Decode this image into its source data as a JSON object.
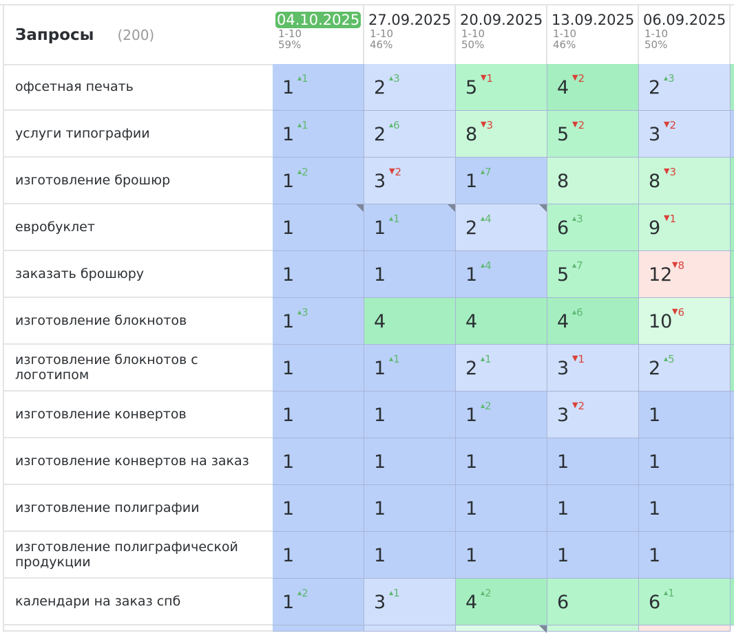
{
  "header": {
    "title": "Запросы",
    "count": "(200)"
  },
  "columns": [
    {
      "date": "04.10.2025",
      "range": "1-10",
      "pct": "59%",
      "active": true
    },
    {
      "date": "27.09.2025",
      "range": "1-10",
      "pct": "46%"
    },
    {
      "date": "20.09.2025",
      "range": "1-10",
      "pct": "50%"
    },
    {
      "date": "13.09.2025",
      "range": "1-10",
      "pct": "46%"
    },
    {
      "date": "06.09.2025",
      "range": "1-10",
      "pct": "50%"
    }
  ],
  "colors": {
    "up": "#5fb870",
    "down": "#d9413a",
    "active_date": "#5fbe67"
  },
  "rows": [
    {
      "query": "офсетная печать",
      "cells": [
        {
          "v": "1",
          "d": "1",
          "dir": "up"
        },
        {
          "v": "2",
          "d": "3",
          "dir": "up"
        },
        {
          "v": "5",
          "d": "1",
          "dir": "down"
        },
        {
          "v": "4",
          "d": "2",
          "dir": "down"
        },
        {
          "v": "2",
          "d": "3",
          "dir": "up"
        }
      ]
    },
    {
      "query": "услуги типографии",
      "cells": [
        {
          "v": "1",
          "d": "1",
          "dir": "up"
        },
        {
          "v": "2",
          "d": "6",
          "dir": "up"
        },
        {
          "v": "8",
          "d": "3",
          "dir": "down"
        },
        {
          "v": "5",
          "d": "2",
          "dir": "down"
        },
        {
          "v": "3",
          "d": "2",
          "dir": "down"
        }
      ]
    },
    {
      "query": "изготовление брошюр",
      "cells": [
        {
          "v": "1",
          "d": "2",
          "dir": "up"
        },
        {
          "v": "3",
          "d": "2",
          "dir": "down"
        },
        {
          "v": "1",
          "d": "7",
          "dir": "up"
        },
        {
          "v": "8"
        },
        {
          "v": "8",
          "d": "3",
          "dir": "down"
        }
      ]
    },
    {
      "query": "евробуклет",
      "cells": [
        {
          "v": "1",
          "note": true
        },
        {
          "v": "1",
          "d": "1",
          "dir": "up",
          "note": true
        },
        {
          "v": "2",
          "d": "4",
          "dir": "up",
          "note": true
        },
        {
          "v": "6",
          "d": "3",
          "dir": "up"
        },
        {
          "v": "9",
          "d": "1",
          "dir": "down"
        }
      ]
    },
    {
      "query": "заказать брошюру",
      "cells": [
        {
          "v": "1"
        },
        {
          "v": "1"
        },
        {
          "v": "1",
          "d": "4",
          "dir": "up"
        },
        {
          "v": "5",
          "d": "7",
          "dir": "up"
        },
        {
          "v": "12",
          "d": "8",
          "dir": "down"
        }
      ]
    },
    {
      "query": "изготовление блокнотов",
      "cells": [
        {
          "v": "1",
          "d": "3",
          "dir": "up"
        },
        {
          "v": "4"
        },
        {
          "v": "4"
        },
        {
          "v": "4",
          "d": "6",
          "dir": "up"
        },
        {
          "v": "10",
          "d": "6",
          "dir": "down"
        }
      ]
    },
    {
      "query": "изготовление блокнотов с логотипом",
      "cells": [
        {
          "v": "1"
        },
        {
          "v": "1",
          "d": "1",
          "dir": "up"
        },
        {
          "v": "2",
          "d": "1",
          "dir": "up"
        },
        {
          "v": "3",
          "d": "1",
          "dir": "down"
        },
        {
          "v": "2",
          "d": "5",
          "dir": "up"
        }
      ]
    },
    {
      "query": "изготовление конвертов",
      "cells": [
        {
          "v": "1"
        },
        {
          "v": "1"
        },
        {
          "v": "1",
          "d": "2",
          "dir": "up"
        },
        {
          "v": "3",
          "d": "2",
          "dir": "down"
        },
        {
          "v": "1"
        }
      ]
    },
    {
      "query": "изготовление конвертов на заказ",
      "cells": [
        {
          "v": "1"
        },
        {
          "v": "1"
        },
        {
          "v": "1"
        },
        {
          "v": "1"
        },
        {
          "v": "1"
        }
      ]
    },
    {
      "query": "изготовление полиграфии",
      "cells": [
        {
          "v": "1"
        },
        {
          "v": "1"
        },
        {
          "v": "1"
        },
        {
          "v": "1"
        },
        {
          "v": "1"
        }
      ]
    },
    {
      "query": "изготовление полиграфической продукции",
      "cells": [
        {
          "v": "1"
        },
        {
          "v": "1"
        },
        {
          "v": "1"
        },
        {
          "v": "1"
        },
        {
          "v": "1"
        }
      ]
    },
    {
      "query": "календари на заказ спб",
      "cells": [
        {
          "v": "1",
          "d": "2",
          "dir": "up"
        },
        {
          "v": "3",
          "d": "1",
          "dir": "up"
        },
        {
          "v": "4",
          "d": "2",
          "dir": "up"
        },
        {
          "v": "6"
        },
        {
          "v": "6",
          "d": "1",
          "dir": "up"
        }
      ]
    }
  ]
}
